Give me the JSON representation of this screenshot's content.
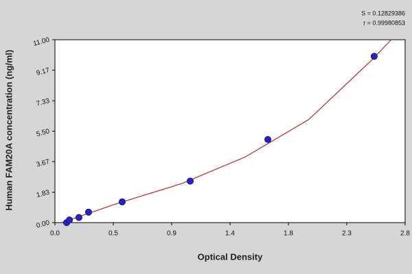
{
  "chart_data": {
    "type": "scatter",
    "annotations": [
      "S = 0.12829386",
      "r = 0.99980853"
    ],
    "xlabel": "Optical Density",
    "ylabel": "Human FAM20A  concentration (ng/ml)",
    "x": [
      0.092,
      0.114,
      0.189,
      0.265,
      0.53,
      1.066,
      1.678,
      2.516
    ],
    "values": [
      0,
      0.16,
      0.31,
      0.63,
      1.25,
      2.5,
      5,
      10
    ],
    "color": "#2424c8",
    "fit": {
      "x": [
        0.05,
        0.5,
        1.0,
        1.5,
        2.0,
        2.5,
        2.65
      ],
      "y": [
        0,
        1.17,
        2.35,
        3.95,
        6.2,
        9.8,
        11
      ],
      "color": "#b02828"
    },
    "xlim": [
      0,
      2.76
    ],
    "xticks": [
      {
        "value": 0,
        "label": "0.0"
      },
      {
        "value": 0.46,
        "label": "0.5"
      },
      {
        "value": 0.92,
        "label": "0.9"
      },
      {
        "value": 1.38,
        "label": "1.4"
      },
      {
        "value": 1.84,
        "label": "1.8"
      },
      {
        "value": 2.3,
        "label": "2.3"
      },
      {
        "value": 2.76,
        "label": "2.8"
      }
    ],
    "ylim": [
      0,
      11
    ],
    "yticks": [
      {
        "value": 0,
        "label": "0.00"
      },
      1.83,
      3.67,
      {
        "value": 5.5,
        "label": "5.50"
      },
      7.33,
      9.17,
      {
        "value": 11,
        "label": "11.00"
      }
    ],
    "grid": false
  }
}
